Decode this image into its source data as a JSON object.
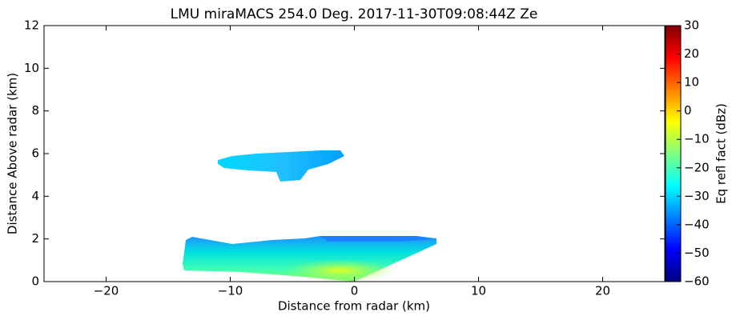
{
  "chart_data": {
    "type": "heatmap",
    "title": "LMU miraMACS 254.0 Deg. 2017-11-30T09:08:44Z  Ze",
    "x_label": "Distance from radar (km)",
    "y_label": "Distance Above radar  (km)",
    "xlim": [
      -25,
      25
    ],
    "xticks": [
      {
        "value": -20,
        "label": "−20"
      },
      {
        "value": -10,
        "label": "−10"
      },
      0,
      10,
      20
    ],
    "ylim": [
      0,
      12
    ],
    "yticks": [
      0,
      2,
      4,
      6,
      8,
      10,
      12
    ],
    "colorbar": {
      "label": "Eq refl fact (dBz)",
      "colormap": "jet",
      "clim": [
        -60,
        30
      ],
      "ticks": [
        {
          "value": -60,
          "label": "−60"
        },
        {
          "value": -50,
          "label": "−50"
        },
        {
          "value": -40,
          "label": "−40"
        },
        {
          "value": -30,
          "label": "−30"
        },
        {
          "value": -20,
          "label": "−20"
        },
        {
          "value": -10,
          "label": "−10"
        },
        0,
        10,
        20,
        30
      ]
    }
  }
}
